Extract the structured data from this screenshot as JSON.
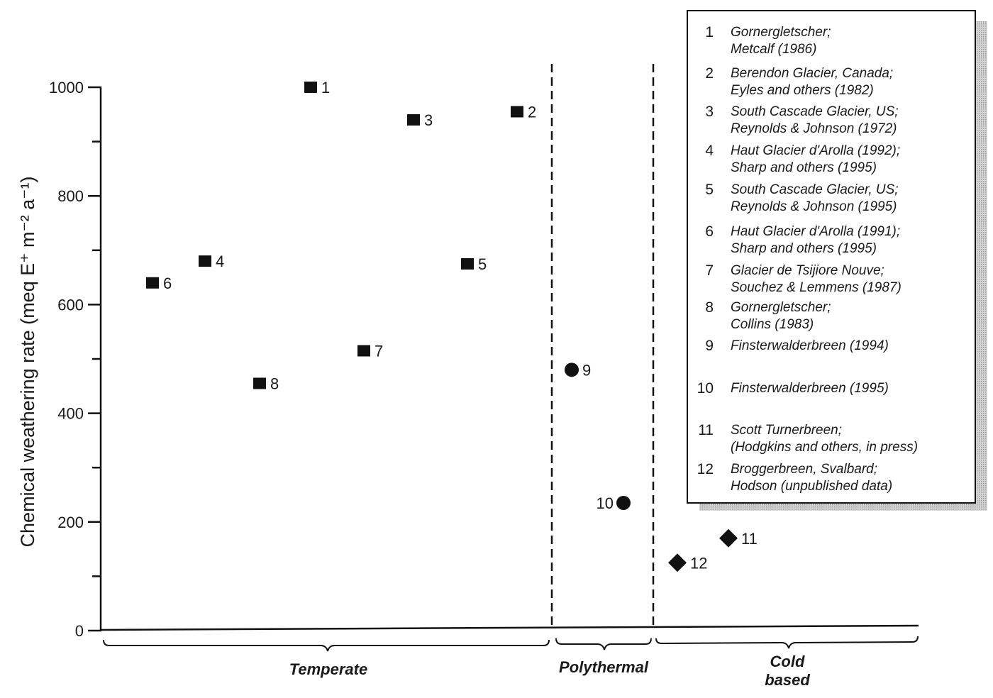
{
  "chart_data": {
    "type": "scatter",
    "title": "",
    "ylabel": "Chemical weathering rate (meq E⁺ m⁻² a⁻¹)",
    "xlabel": "",
    "ylim": [
      0,
      1000
    ],
    "yticks": [
      0,
      200,
      400,
      600,
      800,
      1000
    ],
    "y_minor_ticks": [
      100,
      300,
      500,
      700,
      900
    ],
    "grid": false,
    "legend_position": "top-right",
    "categories": [
      "Temperate",
      "Polythermal",
      "Cold based"
    ],
    "points": [
      {
        "id": "1",
        "category": "Temperate",
        "y": 1000,
        "marker": "square"
      },
      {
        "id": "2",
        "category": "Temperate",
        "y": 955,
        "marker": "square"
      },
      {
        "id": "3",
        "category": "Temperate",
        "y": 940,
        "marker": "square"
      },
      {
        "id": "4",
        "category": "Temperate",
        "y": 680,
        "marker": "square"
      },
      {
        "id": "5",
        "category": "Temperate",
        "y": 675,
        "marker": "square"
      },
      {
        "id": "6",
        "category": "Temperate",
        "y": 640,
        "marker": "square"
      },
      {
        "id": "7",
        "category": "Temperate",
        "y": 515,
        "marker": "square"
      },
      {
        "id": "8",
        "category": "Temperate",
        "y": 455,
        "marker": "square"
      },
      {
        "id": "9",
        "category": "Polythermal",
        "y": 480,
        "marker": "circle"
      },
      {
        "id": "10",
        "category": "Polythermal",
        "y": 235,
        "marker": "circle"
      },
      {
        "id": "11",
        "category": "Cold based",
        "y": 170,
        "marker": "diamond"
      },
      {
        "id": "12",
        "category": "Cold based",
        "y": 125,
        "marker": "diamond"
      }
    ],
    "legend": [
      {
        "num": "1",
        "lines": [
          "Gornergletscher;",
          "Metcalf (1986)"
        ]
      },
      {
        "num": "2",
        "lines": [
          "Berendon Glacier, Canada;",
          "Eyles and others (1982)"
        ]
      },
      {
        "num": "3",
        "lines": [
          "South Cascade Glacier, US;",
          "Reynolds & Johnson (1972)"
        ]
      },
      {
        "num": "4",
        "lines": [
          "Haut Glacier d'Arolla (1992);",
          "Sharp and others (1995)"
        ]
      },
      {
        "num": "5",
        "lines": [
          "South Cascade Glacier, US;",
          "Reynolds & Johnson (1995)"
        ]
      },
      {
        "num": "6",
        "lines": [
          "Haut Glacier d'Arolla (1991);",
          "Sharp and others (1995)"
        ]
      },
      {
        "num": "7",
        "lines": [
          "Glacier de Tsijiore Nouve;",
          "Souchez & Lemmens (1987)"
        ]
      },
      {
        "num": "8",
        "lines": [
          "Gornergletscher;",
          "Collins (1983)"
        ]
      },
      {
        "num": "9",
        "lines": [
          "Finsterwalderbreen (1994)"
        ]
      },
      {
        "num": "10",
        "lines": [
          "Finsterwalderbreen (1995)"
        ]
      },
      {
        "num": "11",
        "lines": [
          "Scott Turnerbreen;",
          "(Hodgkins and others, in press)"
        ]
      },
      {
        "num": "12",
        "lines": [
          "Broggerbreen, Svalbard;",
          "Hodson (unpublished data)"
        ]
      }
    ]
  }
}
